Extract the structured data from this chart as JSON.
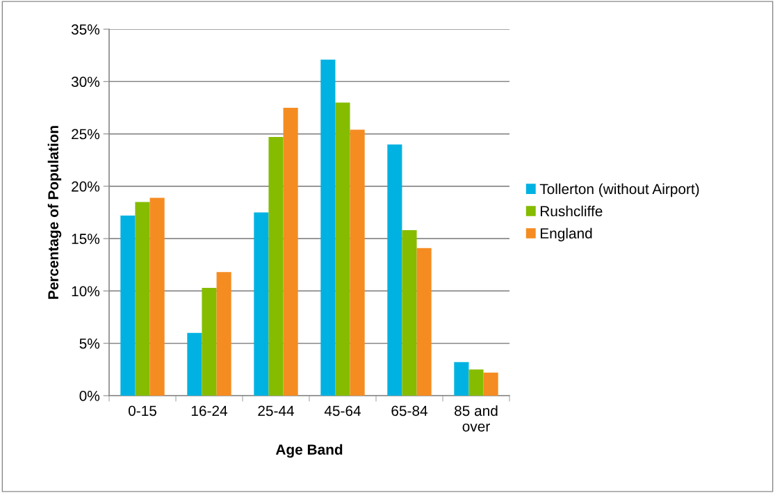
{
  "chart_data": {
    "type": "bar",
    "xlabel": "Age Band",
    "ylabel": "Percentage of Population",
    "categories": [
      "0-15",
      "16-24",
      "25-44",
      "45-64",
      "65-84",
      "85 and\nover"
    ],
    "series": [
      {
        "name": "Tollerton (without Airport)",
        "color": "#00b2e1",
        "values": [
          17.2,
          6.0,
          17.5,
          32.1,
          24.0,
          3.2
        ]
      },
      {
        "name": "Rushcliffe",
        "color": "#85bc00",
        "values": [
          18.5,
          10.3,
          24.7,
          28.0,
          15.8,
          2.5
        ]
      },
      {
        "name": "England",
        "color": "#f58c22",
        "values": [
          18.9,
          11.8,
          27.5,
          25.4,
          14.1,
          2.2
        ]
      }
    ],
    "ylim": [
      0,
      35
    ],
    "yticks": [
      {
        "value": 0,
        "label": "0%"
      },
      {
        "value": 5,
        "label": "5%"
      },
      {
        "value": 10,
        "label": "10%"
      },
      {
        "value": 15,
        "label": "15%"
      },
      {
        "value": 20,
        "label": "20%"
      },
      {
        "value": 25,
        "label": "25%"
      },
      {
        "value": 30,
        "label": "30%"
      },
      {
        "value": 35,
        "label": "35%"
      }
    ],
    "grid": "y",
    "legend": "right"
  }
}
